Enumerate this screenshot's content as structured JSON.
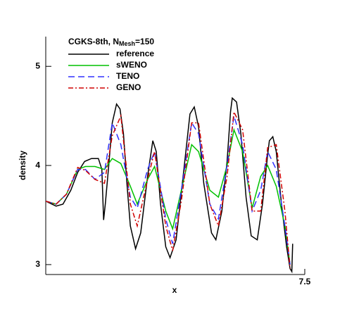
{
  "chart_data": {
    "type": "line",
    "title": "CGKS-8th, N",
    "title_subscript": "Mesh",
    "title_suffix": "=150",
    "xlabel": "x",
    "ylabel": "density",
    "xlim": [
      4.5,
      7.5
    ],
    "xticks": [
      7.5
    ],
    "ylim": [
      2.9,
      5.3
    ],
    "yticks": [
      3,
      4,
      5
    ],
    "legend": "upper left",
    "grid": false,
    "series": [
      {
        "name": "reference",
        "color": "#000000",
        "dash": "solid",
        "x": [
          4.5,
          4.62,
          4.7,
          4.79,
          4.87,
          4.95,
          5.03,
          5.11,
          5.15,
          5.17,
          5.19,
          5.23,
          5.27,
          5.32,
          5.36,
          5.4,
          5.44,
          5.48,
          5.54,
          5.6,
          5.68,
          5.74,
          5.78,
          5.83,
          5.89,
          5.94,
          6.01,
          6.11,
          6.17,
          6.22,
          6.27,
          6.33,
          6.42,
          6.47,
          6.54,
          6.6,
          6.64,
          6.66,
          6.71,
          6.76,
          6.82,
          6.88,
          6.95,
          7.01,
          7.07,
          7.09,
          7.13,
          7.17,
          7.23,
          7.29,
          7.33,
          7.35,
          7.36
        ],
        "values": [
          3.64,
          3.59,
          3.61,
          3.75,
          3.93,
          4.04,
          4.07,
          4.07,
          3.96,
          3.45,
          3.61,
          4.0,
          4.43,
          4.62,
          4.57,
          4.32,
          3.82,
          3.39,
          3.16,
          3.32,
          3.89,
          4.25,
          4.14,
          3.61,
          3.18,
          3.07,
          3.25,
          4.04,
          4.52,
          4.59,
          4.39,
          3.82,
          3.32,
          3.25,
          3.54,
          4.04,
          4.54,
          4.68,
          4.64,
          4.32,
          3.68,
          3.29,
          3.25,
          3.61,
          4.11,
          4.25,
          4.29,
          4.14,
          3.61,
          3.18,
          2.96,
          2.93,
          3.21
        ]
      },
      {
        "name": "sWENO",
        "color": "#00c000",
        "dash": "solid",
        "x": [
          4.5,
          4.62,
          4.74,
          4.87,
          4.96,
          5.07,
          5.18,
          5.27,
          5.37,
          5.48,
          5.56,
          5.68,
          5.76,
          5.89,
          5.97,
          6.07,
          6.19,
          6.27,
          6.4,
          6.5,
          6.6,
          6.68,
          6.78,
          6.89,
          6.99,
          7.07,
          7.17,
          7.27,
          7.33
        ],
        "values": [
          3.64,
          3.61,
          3.71,
          3.96,
          3.99,
          3.99,
          3.96,
          4.07,
          4.02,
          3.79,
          3.61,
          3.86,
          3.99,
          3.54,
          3.36,
          3.75,
          4.21,
          4.14,
          3.75,
          3.68,
          4.0,
          4.36,
          4.14,
          3.57,
          3.89,
          4.0,
          3.79,
          3.39,
          3.0
        ]
      },
      {
        "name": "TENO",
        "color": "#3030ff",
        "dash": "long",
        "x": [
          4.5,
          4.62,
          4.74,
          4.87,
          4.96,
          5.07,
          5.18,
          5.27,
          5.37,
          5.48,
          5.56,
          5.68,
          5.76,
          5.89,
          5.97,
          6.07,
          6.19,
          6.27,
          6.4,
          6.5,
          6.6,
          6.68,
          6.78,
          6.89,
          6.99,
          7.07,
          7.17,
          7.27,
          7.33
        ],
        "values": [
          3.64,
          3.61,
          3.71,
          3.96,
          3.96,
          3.86,
          3.93,
          4.43,
          4.21,
          3.68,
          3.57,
          3.96,
          4.14,
          3.46,
          3.21,
          3.75,
          4.43,
          4.32,
          3.61,
          3.46,
          4.0,
          4.5,
          4.21,
          3.54,
          3.75,
          4.14,
          3.96,
          3.39,
          3.0
        ]
      },
      {
        "name": "GENO",
        "color": "#d00000",
        "dash": "dashdot",
        "x": [
          4.5,
          4.62,
          4.74,
          4.87,
          4.96,
          5.07,
          5.18,
          5.27,
          5.37,
          5.48,
          5.56,
          5.68,
          5.76,
          5.89,
          5.97,
          6.07,
          6.19,
          6.27,
          6.4,
          6.5,
          6.6,
          6.68,
          6.78,
          6.89,
          6.99,
          7.07,
          7.17,
          7.27,
          7.33
        ],
        "values": [
          3.64,
          3.61,
          3.71,
          3.98,
          3.95,
          3.86,
          3.82,
          4.3,
          4.5,
          3.61,
          3.39,
          3.86,
          4.14,
          3.39,
          3.14,
          3.64,
          4.43,
          4.43,
          3.61,
          3.39,
          3.89,
          4.54,
          4.36,
          3.54,
          3.54,
          4.18,
          4.21,
          3.54,
          2.96
        ]
      }
    ]
  }
}
